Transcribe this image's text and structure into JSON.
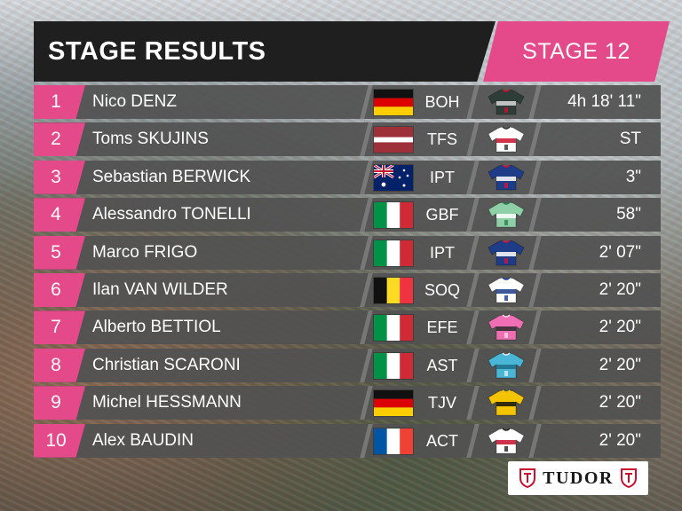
{
  "header": {
    "title": "STAGE RESULTS",
    "stage": "STAGE 12"
  },
  "colors": {
    "accent": "#e4498a",
    "bar": "#525252",
    "header": "#1f1f1f"
  },
  "results": [
    {
      "rank": "1",
      "name": "Nico DENZ",
      "country": "germany",
      "team": "BOH",
      "jersey": "boh-jersey-icon",
      "time": "4h 18' 11\""
    },
    {
      "rank": "2",
      "name": "Toms SKUJINS",
      "country": "latvia",
      "team": "TFS",
      "jersey": "tfs-jersey-icon",
      "time": "ST"
    },
    {
      "rank": "3",
      "name": "Sebastian BERWICK",
      "country": "australia",
      "team": "IPT",
      "jersey": "ipt-jersey-icon",
      "time": "3\""
    },
    {
      "rank": "4",
      "name": "Alessandro TONELLI",
      "country": "italy",
      "team": "GBF",
      "jersey": "gbf-jersey-icon",
      "time": "58\""
    },
    {
      "rank": "5",
      "name": "Marco FRIGO",
      "country": "italy",
      "team": "IPT",
      "jersey": "ipt-jersey-icon",
      "time": "2' 07\""
    },
    {
      "rank": "6",
      "name": "Ilan VAN WILDER",
      "country": "belgium",
      "team": "SOQ",
      "jersey": "soq-jersey-icon",
      "time": "2' 20\""
    },
    {
      "rank": "7",
      "name": "Alberto BETTIOL",
      "country": "italy",
      "team": "EFE",
      "jersey": "efe-jersey-icon",
      "time": "2' 20\""
    },
    {
      "rank": "8",
      "name": "Christian SCARONI",
      "country": "italy",
      "team": "AST",
      "jersey": "ast-jersey-icon",
      "time": "2' 20\""
    },
    {
      "rank": "9",
      "name": "Michel HESSMANN",
      "country": "germany",
      "team": "TJV",
      "jersey": "tjv-jersey-icon",
      "time": "2' 20\""
    },
    {
      "rank": "10",
      "name": "Alex BAUDIN",
      "country": "france",
      "team": "ACT",
      "jersey": "act-jersey-icon",
      "time": "2' 20\""
    }
  ],
  "sponsor": {
    "name": "TUDOR"
  }
}
